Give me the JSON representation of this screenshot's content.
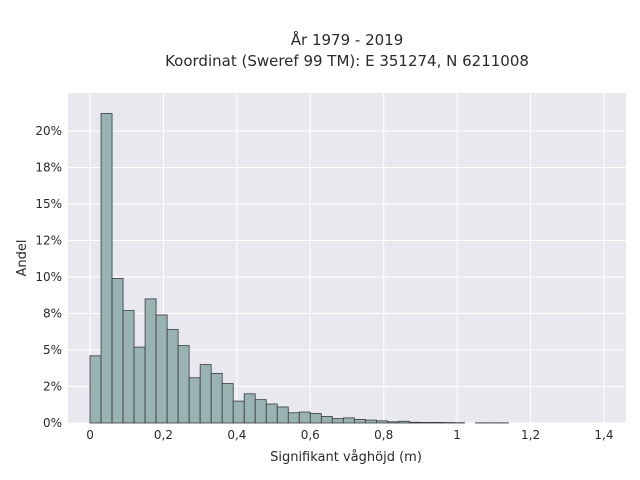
{
  "chart_data": {
    "type": "bar",
    "title_line1": "År 1979 - 2019",
    "title_line2": "Koordinat (Sweref 99 TM): E 351274, N 6211008",
    "xlabel": "Signifikant våghöjd (m)",
    "ylabel": "Andel",
    "xlim": [
      -0.06,
      1.46
    ],
    "ylim": [
      0,
      0.226
    ],
    "x_ticks": [
      0,
      0.2,
      0.4,
      0.6,
      0.8,
      1.0,
      1.2,
      1.4
    ],
    "x_tick_labels": [
      "0",
      "0,2",
      "0,4",
      "0,6",
      "0,8",
      "1",
      "1,2",
      "1,4"
    ],
    "y_ticks": [
      0,
      0.025,
      0.05,
      0.075,
      0.1,
      0.125,
      0.15,
      0.175,
      0.2
    ],
    "y_tick_labels": [
      "0%",
      "2%",
      "5%",
      "8%",
      "10%",
      "12%",
      "15%",
      "18%",
      "20%"
    ],
    "grid": true,
    "bar_color": "#99b3b3",
    "bar_edge_color": "#3a3a3a",
    "plot_background": "#e8e8ef",
    "grid_color": "#ffffff",
    "bin_width": 0.03,
    "bins": [
      {
        "x0": 0.0,
        "x1": 0.03,
        "value": 0.046
      },
      {
        "x0": 0.03,
        "x1": 0.06,
        "value": 0.212
      },
      {
        "x0": 0.06,
        "x1": 0.09,
        "value": 0.099
      },
      {
        "x0": 0.09,
        "x1": 0.12,
        "value": 0.077
      },
      {
        "x0": 0.12,
        "x1": 0.15,
        "value": 0.052
      },
      {
        "x0": 0.15,
        "x1": 0.18,
        "value": 0.085
      },
      {
        "x0": 0.18,
        "x1": 0.21,
        "value": 0.074
      },
      {
        "x0": 0.21,
        "x1": 0.24,
        "value": 0.064
      },
      {
        "x0": 0.24,
        "x1": 0.27,
        "value": 0.053
      },
      {
        "x0": 0.27,
        "x1": 0.3,
        "value": 0.031
      },
      {
        "x0": 0.3,
        "x1": 0.33,
        "value": 0.04
      },
      {
        "x0": 0.33,
        "x1": 0.36,
        "value": 0.034
      },
      {
        "x0": 0.36,
        "x1": 0.39,
        "value": 0.027
      },
      {
        "x0": 0.39,
        "x1": 0.42,
        "value": 0.015
      },
      {
        "x0": 0.42,
        "x1": 0.45,
        "value": 0.02
      },
      {
        "x0": 0.45,
        "x1": 0.48,
        "value": 0.016
      },
      {
        "x0": 0.48,
        "x1": 0.51,
        "value": 0.013
      },
      {
        "x0": 0.51,
        "x1": 0.54,
        "value": 0.011
      },
      {
        "x0": 0.54,
        "x1": 0.57,
        "value": 0.007
      },
      {
        "x0": 0.57,
        "x1": 0.6,
        "value": 0.0075
      },
      {
        "x0": 0.6,
        "x1": 0.63,
        "value": 0.0065
      },
      {
        "x0": 0.63,
        "x1": 0.66,
        "value": 0.0045
      },
      {
        "x0": 0.66,
        "x1": 0.69,
        "value": 0.003
      },
      {
        "x0": 0.69,
        "x1": 0.72,
        "value": 0.0035
      },
      {
        "x0": 0.72,
        "x1": 0.75,
        "value": 0.0025
      },
      {
        "x0": 0.75,
        "x1": 0.78,
        "value": 0.002
      },
      {
        "x0": 0.78,
        "x1": 0.81,
        "value": 0.0015
      },
      {
        "x0": 0.81,
        "x1": 0.84,
        "value": 0.0008
      },
      {
        "x0": 0.84,
        "x1": 0.87,
        "value": 0.0012
      },
      {
        "x0": 0.87,
        "x1": 0.9,
        "value": 0.0005
      },
      {
        "x0": 0.9,
        "x1": 0.93,
        "value": 0.0004
      },
      {
        "x0": 0.93,
        "x1": 0.96,
        "value": 0.0004
      },
      {
        "x0": 0.96,
        "x1": 0.99,
        "value": 0.0003
      },
      {
        "x0": 0.99,
        "x1": 1.02,
        "value": 0.0002
      },
      {
        "x0": 1.02,
        "x1": 1.05,
        "value": 0.0
      },
      {
        "x0": 1.05,
        "x1": 1.08,
        "value": 0.0001
      },
      {
        "x0": 1.08,
        "x1": 1.11,
        "value": 0.0001
      },
      {
        "x0": 1.11,
        "x1": 1.14,
        "value": 0.0001
      }
    ]
  }
}
